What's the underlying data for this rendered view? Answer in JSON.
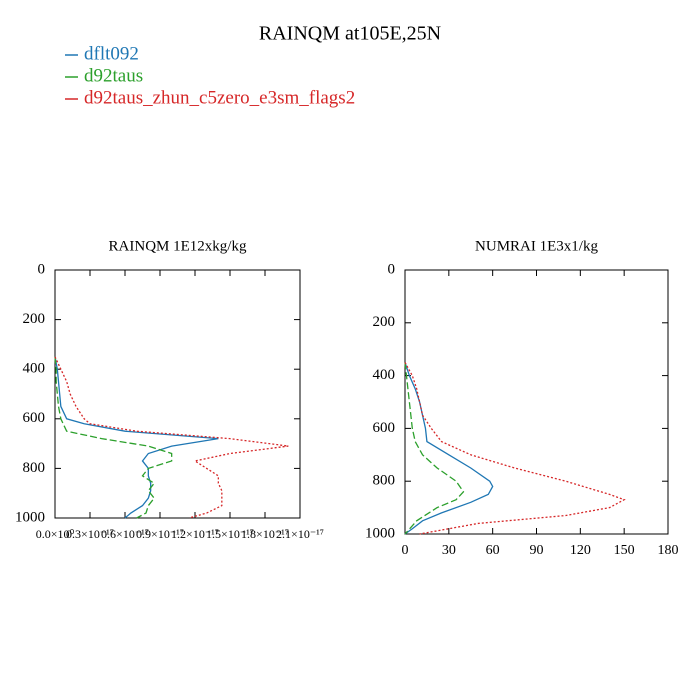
{
  "title": "RAINQM at105E,25N",
  "chart_data": [
    {
      "type": "line",
      "title": "RAINQM  1E12xkg/kg",
      "xlim": [
        0,
        2.1e-17
      ],
      "xticks": [
        {
          "value": 0,
          "label": "0.0×10⁰"
        },
        {
          "value": 3e-18,
          "label": "0.3×10⁻¹⁷"
        },
        {
          "value": 6e-18,
          "label": "0.6×10⁻¹⁷"
        },
        {
          "value": 9e-18,
          "label": "0.9×10⁻¹⁷"
        },
        {
          "value": 1.2e-17,
          "label": "1.2×10⁻¹⁷"
        },
        {
          "value": 1.5e-17,
          "label": "1.5×10⁻¹⁷"
        },
        {
          "value": 1.8e-17,
          "label": "1.8×10⁻¹⁷"
        },
        {
          "value": 2.1e-17,
          "label": "2.1×10⁻¹⁷"
        }
      ],
      "ylim": [
        0,
        1000
      ],
      "yticks": [
        0,
        200,
        400,
        600,
        800,
        1000
      ],
      "series": [
        {
          "name": "dflt092",
          "color": "#1f77b4",
          "style": "solid",
          "y": [
            350,
            400,
            450,
            500,
            550,
            600,
            620,
            650,
            680,
            710,
            740,
            770,
            800,
            830,
            860,
            890,
            920,
            950,
            980,
            1000
          ],
          "values": [
            0,
            2e-19,
            3e-19,
            4e-19,
            5e-19,
            1e-18,
            2.5e-18,
            6e-18,
            1.4e-17,
            1e-17,
            8e-18,
            7.5e-18,
            8e-18,
            8e-18,
            8.2e-18,
            8.2e-18,
            8e-18,
            7.5e-18,
            6.5e-18,
            6e-18
          ]
        },
        {
          "name": "d92taus",
          "color": "#2ca02c",
          "style": "dashed",
          "y": [
            350,
            400,
            450,
            500,
            550,
            600,
            620,
            650,
            680,
            710,
            740,
            770,
            800,
            830,
            860,
            890,
            920,
            950,
            980,
            1000
          ],
          "values": [
            0,
            1e-19,
            1e-19,
            2e-19,
            3e-19,
            5e-19,
            7e-19,
            1e-18,
            4e-18,
            8e-18,
            1e-17,
            1e-17,
            8e-18,
            7.5e-18,
            8.5e-18,
            8e-18,
            8.5e-18,
            8e-18,
            7.8e-18,
            7e-18
          ]
        },
        {
          "name": "d92taus_zhun_c5zero_e3sm_flags2",
          "color": "#d62728",
          "style": "dotted",
          "y": [
            350,
            400,
            450,
            500,
            550,
            600,
            620,
            650,
            680,
            710,
            740,
            770,
            800,
            830,
            860,
            890,
            920,
            950,
            980,
            1000
          ],
          "values": [
            0,
            5e-19,
            1e-18,
            1.3e-18,
            1.8e-18,
            2.5e-18,
            3e-18,
            7e-18,
            1.5e-17,
            2e-17,
            1.5e-17,
            1.2e-17,
            1.3e-17,
            1.4e-17,
            1.4e-17,
            1.43e-17,
            1.43e-17,
            1.43e-17,
            1.3e-17,
            1.15e-17
          ]
        }
      ]
    },
    {
      "type": "line",
      "title": "NUMRAI  1E3x1/kg",
      "xlim": [
        0,
        180
      ],
      "xticks": [
        0,
        30,
        60,
        90,
        120,
        150,
        180
      ],
      "ylim": [
        0,
        1000
      ],
      "yticks": [
        0,
        200,
        400,
        600,
        800,
        1000
      ],
      "series": [
        {
          "color": "#1f77b4",
          "style": "solid",
          "y": [
            350,
            400,
            450,
            500,
            550,
            600,
            650,
            700,
            750,
            800,
            820,
            850,
            880,
            920,
            950,
            980,
            1000
          ],
          "values": [
            0,
            3,
            7,
            10,
            12,
            14,
            15,
            30,
            45,
            58,
            60,
            57,
            45,
            25,
            12,
            5,
            0
          ]
        },
        {
          "color": "#2ca02c",
          "style": "dashed",
          "y": [
            350,
            400,
            450,
            500,
            550,
            600,
            650,
            700,
            750,
            800,
            840,
            870,
            900,
            950,
            1000
          ],
          "values": [
            0,
            1,
            2,
            3,
            4,
            5,
            7,
            12,
            22,
            35,
            40,
            35,
            22,
            8,
            0
          ]
        },
        {
          "color": "#d62728",
          "style": "dotted",
          "y": [
            350,
            400,
            450,
            500,
            550,
            600,
            650,
            700,
            750,
            800,
            850,
            870,
            900,
            930,
            960,
            1000
          ],
          "values": [
            0,
            5,
            8,
            10,
            12,
            18,
            25,
            45,
            75,
            110,
            140,
            150,
            140,
            110,
            50,
            10
          ]
        }
      ]
    }
  ]
}
